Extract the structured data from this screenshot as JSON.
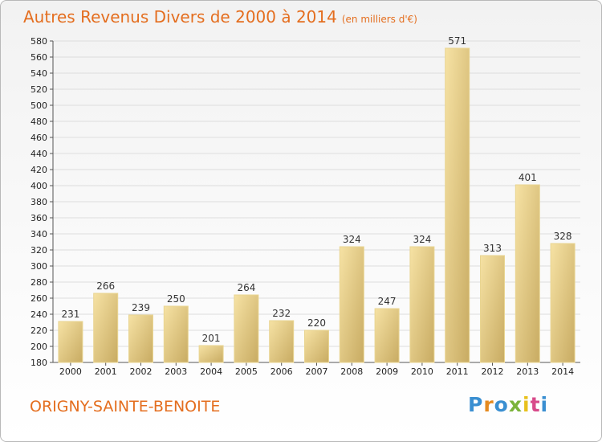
{
  "header": {
    "title": "Autres Revenus Divers de 2000 à 2014",
    "subtitle": "(en milliers d'€)"
  },
  "footer": {
    "commune": "ORIGNY-SAINTE-BENOITE",
    "logo_text": "Proxiti"
  },
  "colors": {
    "accent": "#e46e1f",
    "bar_light": "#f3dc9a",
    "bar_dark": "#c7ac64",
    "grid": "#dddddd"
  },
  "chart_data": {
    "type": "bar",
    "title": "Autres Revenus Divers de 2000 à 2014",
    "subtitle": "(en milliers d'€)",
    "xlabel": "",
    "ylabel": "",
    "categories": [
      "2000",
      "2001",
      "2002",
      "2003",
      "2004",
      "2005",
      "2006",
      "2007",
      "2008",
      "2009",
      "2010",
      "2011",
      "2012",
      "2013",
      "2014"
    ],
    "values": [
      231,
      266,
      239,
      250,
      201,
      264,
      232,
      220,
      324,
      247,
      324,
      571,
      313,
      401,
      328
    ],
    "ylim": [
      180,
      580
    ],
    "ytick_step": 20,
    "grid": "horizontal",
    "data_labels": true
  }
}
